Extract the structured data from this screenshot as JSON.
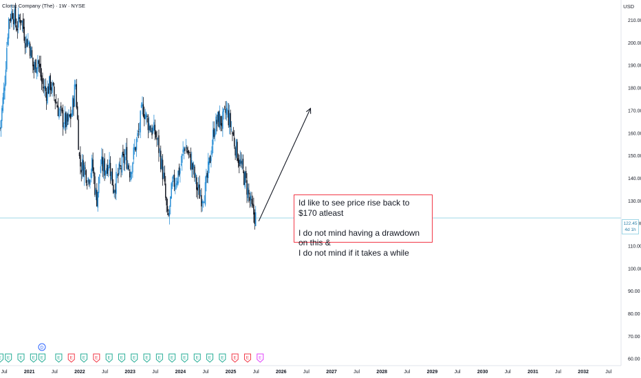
{
  "header": {
    "title": "Clorox Company (The) · 1W · NYSE",
    "currency": "USD"
  },
  "price_tag": {
    "price": "122.45",
    "countdown": "4d 1h"
  },
  "annotation": {
    "line1": "Id like to see price rise back to $170 atleast",
    "line2": "I do not mind having a drawdown on this &",
    "line3": "I do not mind if it takes a while"
  },
  "colors": {
    "up": "#2a8fd6",
    "down": "#131722",
    "arrow": "#131722",
    "earnings_green": "#22ab94",
    "earnings_red": "#f23645",
    "earnings_purple": "#e040fb",
    "dividend_blue": "#2962ff",
    "price_line": "#9fd6e6"
  },
  "chart_data": {
    "type": "candlestick",
    "title": "Clorox Company (The) · 1W · NYSE",
    "ylabel": "USD",
    "ylim": [
      57,
      219
    ],
    "y_ticks": [
      60,
      70,
      80,
      90,
      100,
      110,
      120,
      130,
      140,
      150,
      160,
      170,
      180,
      190,
      200,
      210
    ],
    "x_ticks": [
      "Jul",
      "2021",
      "Jul",
      "2022",
      "Jul",
      "2023",
      "Jul",
      "2024",
      "Jul",
      "2025",
      "Jul",
      "2026",
      "Jul",
      "2027",
      "Jul",
      "2028",
      "Jul",
      "2029",
      "Jul",
      "2030",
      "Jul",
      "2031",
      "Jul",
      "2032",
      "Jul"
    ],
    "x_range": [
      "2020-06",
      "2032-10"
    ],
    "current_price": 122.45,
    "price_path": [
      [
        "2020-06",
        162
      ],
      [
        "2020-07",
        180
      ],
      [
        "2020-08",
        210
      ],
      [
        "2020-09",
        214
      ],
      [
        "2020-10",
        207
      ],
      [
        "2020-11",
        212
      ],
      [
        "2020-12",
        202
      ],
      [
        "2021-01",
        200
      ],
      [
        "2021-02",
        188
      ],
      [
        "2021-03",
        193
      ],
      [
        "2021-04",
        182
      ],
      [
        "2021-05",
        178
      ],
      [
        "2021-06",
        182
      ],
      [
        "2021-07",
        176
      ],
      [
        "2021-08",
        170
      ],
      [
        "2021-09",
        166
      ],
      [
        "2021-10",
        164
      ],
      [
        "2021-11",
        168
      ],
      [
        "2021-12",
        182
      ],
      [
        "2022-01",
        146
      ],
      [
        "2022-02",
        145
      ],
      [
        "2022-03",
        140
      ],
      [
        "2022-04",
        146
      ],
      [
        "2022-05",
        130
      ],
      [
        "2022-06",
        146
      ],
      [
        "2022-07",
        144
      ],
      [
        "2022-08",
        148
      ],
      [
        "2022-09",
        136
      ],
      [
        "2022-10",
        140
      ],
      [
        "2022-11",
        146
      ],
      [
        "2022-12",
        150
      ],
      [
        "2023-01",
        143
      ],
      [
        "2023-02",
        152
      ],
      [
        "2023-03",
        160
      ],
      [
        "2023-04",
        172
      ],
      [
        "2023-05",
        166
      ],
      [
        "2023-06",
        162
      ],
      [
        "2023-07",
        160
      ],
      [
        "2023-08",
        152
      ],
      [
        "2023-09",
        140
      ],
      [
        "2023-10",
        120
      ],
      [
        "2023-11",
        136
      ],
      [
        "2023-12",
        140
      ],
      [
        "2024-01",
        145
      ],
      [
        "2024-02",
        155
      ],
      [
        "2024-03",
        150
      ],
      [
        "2024-04",
        144
      ],
      [
        "2024-05",
        135
      ],
      [
        "2024-06",
        132
      ],
      [
        "2024-07",
        135
      ],
      [
        "2024-08",
        148
      ],
      [
        "2024-09",
        162
      ],
      [
        "2024-10",
        166
      ],
      [
        "2024-11",
        165
      ],
      [
        "2024-12",
        170
      ],
      [
        "2025-01",
        163
      ],
      [
        "2025-02",
        155
      ],
      [
        "2025-03",
        148
      ],
      [
        "2025-04",
        142
      ],
      [
        "2025-05",
        135
      ],
      [
        "2025-06",
        126
      ],
      [
        "2025-07",
        122.45
      ]
    ],
    "target_arrow": {
      "from": [
        "2025-07",
        121
      ],
      "to": [
        "2026-08",
        171
      ]
    },
    "events": [
      {
        "date": "2020-06",
        "type": "E",
        "color": "green"
      },
      {
        "date": "2020-08",
        "type": "E",
        "color": "green"
      },
      {
        "date": "2020-11",
        "type": "E",
        "color": "green"
      },
      {
        "date": "2021-02",
        "type": "E",
        "color": "green"
      },
      {
        "date": "2021-04",
        "type": "D",
        "color": "blue"
      },
      {
        "date": "2021-04",
        "type": "E",
        "color": "green"
      },
      {
        "date": "2021-08",
        "type": "E",
        "color": "green"
      },
      {
        "date": "2021-11",
        "type": "E",
        "color": "red"
      },
      {
        "date": "2022-02",
        "type": "E",
        "color": "green"
      },
      {
        "date": "2022-05",
        "type": "E",
        "color": "red"
      },
      {
        "date": "2022-08",
        "type": "E",
        "color": "green"
      },
      {
        "date": "2022-11",
        "type": "E",
        "color": "green"
      },
      {
        "date": "2023-02",
        "type": "E",
        "color": "green"
      },
      {
        "date": "2023-05",
        "type": "E",
        "color": "green"
      },
      {
        "date": "2023-08",
        "type": "E",
        "color": "green"
      },
      {
        "date": "2023-11",
        "type": "E",
        "color": "green"
      },
      {
        "date": "2024-02",
        "type": "E",
        "color": "green"
      },
      {
        "date": "2024-05",
        "type": "E",
        "color": "green"
      },
      {
        "date": "2024-08",
        "type": "E",
        "color": "green"
      },
      {
        "date": "2024-11",
        "type": "E",
        "color": "green"
      },
      {
        "date": "2025-02",
        "type": "E",
        "color": "red"
      },
      {
        "date": "2025-05",
        "type": "E",
        "color": "red"
      },
      {
        "date": "2025-08",
        "type": "E",
        "color": "purple"
      }
    ]
  }
}
